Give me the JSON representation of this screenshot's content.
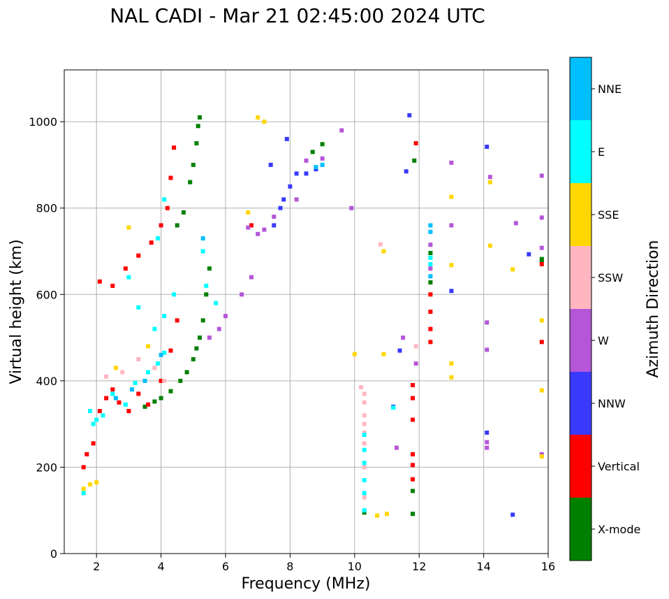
{
  "chart_data": {
    "type": "scatter",
    "title": "NAL CADI - Mar 21 02:45:00 2024 UTC",
    "xlabel": "Frequency (MHz)",
    "ylabel": "Virtual height (km)",
    "xlim": [
      1.0,
      16.0
    ],
    "ylim": [
      0,
      1120
    ],
    "xticks": [
      2,
      4,
      6,
      8,
      10,
      12,
      14,
      16
    ],
    "yticks": [
      0,
      200,
      400,
      600,
      800,
      1000
    ],
    "grid": true,
    "colorbar": {
      "label": "Azimuth Direction",
      "categories": [
        {
          "name": "X-mode",
          "color": "#008000"
        },
        {
          "name": "Vertical",
          "color": "#ff0000"
        },
        {
          "name": "NNW",
          "color": "#3a3aff"
        },
        {
          "name": "W",
          "color": "#b556d8"
        },
        {
          "name": "SSW",
          "color": "#ffb6c1"
        },
        {
          "name": "SSE",
          "color": "#ffd700"
        },
        {
          "name": "E",
          "color": "#00ffff"
        },
        {
          "name": "NNE",
          "color": "#00bfff"
        }
      ]
    },
    "series": [
      {
        "name": "X-mode",
        "points": [
          [
            3.5,
            340
          ],
          [
            3.8,
            352
          ],
          [
            4.0,
            360
          ],
          [
            4.3,
            376
          ],
          [
            4.6,
            400
          ],
          [
            4.8,
            420
          ],
          [
            5.0,
            450
          ],
          [
            5.1,
            475
          ],
          [
            5.2,
            500
          ],
          [
            5.3,
            540
          ],
          [
            5.4,
            600
          ],
          [
            5.5,
            660
          ],
          [
            4.5,
            760
          ],
          [
            4.7,
            790
          ],
          [
            4.9,
            860
          ],
          [
            5.0,
            900
          ],
          [
            5.1,
            950
          ],
          [
            5.15,
            990
          ],
          [
            5.2,
            1010
          ],
          [
            8.7,
            930
          ],
          [
            9.0,
            948
          ],
          [
            10.3,
            95
          ],
          [
            11.8,
            92
          ],
          [
            11.8,
            145
          ],
          [
            11.85,
            910
          ],
          [
            12.35,
            628
          ],
          [
            12.35,
            696
          ],
          [
            15.8,
            678
          ],
          [
            15.8,
            682
          ]
        ]
      },
      {
        "name": "Vertical",
        "points": [
          [
            1.6,
            200
          ],
          [
            1.7,
            230
          ],
          [
            1.9,
            255
          ],
          [
            2.1,
            330
          ],
          [
            2.3,
            360
          ],
          [
            2.5,
            380
          ],
          [
            2.7,
            350
          ],
          [
            3.0,
            330
          ],
          [
            3.3,
            370
          ],
          [
            3.6,
            345
          ],
          [
            4.0,
            400
          ],
          [
            4.3,
            470
          ],
          [
            4.5,
            540
          ],
          [
            2.1,
            630
          ],
          [
            2.5,
            620
          ],
          [
            2.9,
            660
          ],
          [
            3.3,
            690
          ],
          [
            3.7,
            720
          ],
          [
            4.0,
            760
          ],
          [
            4.2,
            800
          ],
          [
            4.3,
            870
          ],
          [
            4.4,
            940
          ],
          [
            6.8,
            760
          ],
          [
            11.8,
            390
          ],
          [
            11.8,
            360
          ],
          [
            11.8,
            310
          ],
          [
            11.8,
            230
          ],
          [
            11.8,
            205
          ],
          [
            11.8,
            172
          ],
          [
            11.9,
            950
          ],
          [
            12.35,
            490
          ],
          [
            12.35,
            520
          ],
          [
            12.35,
            560
          ],
          [
            12.35,
            600
          ],
          [
            15.8,
            490
          ],
          [
            15.8,
            670
          ]
        ]
      },
      {
        "name": "NNW",
        "points": [
          [
            7.5,
            760
          ],
          [
            7.8,
            820
          ],
          [
            8.0,
            850
          ],
          [
            8.2,
            880
          ],
          [
            8.5,
            880
          ],
          [
            8.8,
            890
          ],
          [
            7.7,
            800
          ],
          [
            7.9,
            960
          ],
          [
            7.4,
            900
          ],
          [
            11.4,
            470
          ],
          [
            11.2,
            340
          ],
          [
            11.6,
            885
          ],
          [
            11.7,
            1015
          ],
          [
            13.0,
            608
          ],
          [
            14.1,
            280
          ],
          [
            14.1,
            942
          ],
          [
            15.4,
            693
          ],
          [
            14.9,
            90
          ]
        ]
      },
      {
        "name": "W",
        "points": [
          [
            5.5,
            500
          ],
          [
            5.8,
            520
          ],
          [
            6.0,
            550
          ],
          [
            6.5,
            600
          ],
          [
            6.8,
            640
          ],
          [
            7.0,
            740
          ],
          [
            7.5,
            780
          ],
          [
            7.2,
            750
          ],
          [
            6.7,
            755
          ],
          [
            8.2,
            820
          ],
          [
            8.5,
            910
          ],
          [
            9.0,
            915
          ],
          [
            9.6,
            980
          ],
          [
            9.9,
            800
          ],
          [
            11.3,
            245
          ],
          [
            11.9,
            440
          ],
          [
            11.5,
            500
          ],
          [
            12.35,
            660
          ],
          [
            12.35,
            715
          ],
          [
            13.0,
            760
          ],
          [
            13.0,
            905
          ],
          [
            14.1,
            245
          ],
          [
            14.1,
            258
          ],
          [
            14.1,
            472
          ],
          [
            14.1,
            535
          ],
          [
            14.2,
            872
          ],
          [
            15.0,
            765
          ],
          [
            15.8,
            230
          ],
          [
            15.8,
            708
          ],
          [
            15.8,
            778
          ],
          [
            15.8,
            875
          ]
        ]
      },
      {
        "name": "SSW",
        "points": [
          [
            2.3,
            410
          ],
          [
            2.8,
            420
          ],
          [
            3.3,
            450
          ],
          [
            4.1,
            400
          ],
          [
            3.8,
            430
          ],
          [
            10.2,
            385
          ],
          [
            10.3,
            370
          ],
          [
            10.3,
            350
          ],
          [
            10.3,
            320
          ],
          [
            10.3,
            300
          ],
          [
            10.3,
            280
          ],
          [
            10.3,
            255
          ],
          [
            10.3,
            200
          ],
          [
            10.3,
            130
          ],
          [
            10.8,
            716
          ],
          [
            11.9,
            480
          ]
        ]
      },
      {
        "name": "SSE",
        "points": [
          [
            1.6,
            150
          ],
          [
            1.8,
            160
          ],
          [
            2.0,
            165
          ],
          [
            3.0,
            755
          ],
          [
            2.6,
            430
          ],
          [
            3.6,
            480
          ],
          [
            7.0,
            1010
          ],
          [
            7.2,
            1000
          ],
          [
            6.7,
            790
          ],
          [
            10.0,
            462
          ],
          [
            10.7,
            88
          ],
          [
            10.9,
            700
          ],
          [
            10.9,
            462
          ],
          [
            11.0,
            92
          ],
          [
            13.0,
            408
          ],
          [
            13.0,
            440
          ],
          [
            13.0,
            668
          ],
          [
            13.0,
            826
          ],
          [
            14.2,
            713
          ],
          [
            14.2,
            860
          ],
          [
            14.9,
            658
          ],
          [
            15.8,
            225
          ],
          [
            15.8,
            378
          ],
          [
            15.8,
            540
          ]
        ]
      },
      {
        "name": "E",
        "points": [
          [
            1.6,
            140
          ],
          [
            1.8,
            330
          ],
          [
            2.0,
            310
          ],
          [
            2.2,
            320
          ],
          [
            2.5,
            370
          ],
          [
            2.9,
            345
          ],
          [
            3.2,
            395
          ],
          [
            3.6,
            420
          ],
          [
            3.9,
            440
          ],
          [
            4.1,
            465
          ],
          [
            3.8,
            520
          ],
          [
            4.1,
            550
          ],
          [
            4.4,
            600
          ],
          [
            3.3,
            570
          ],
          [
            3.0,
            640
          ],
          [
            3.9,
            730
          ],
          [
            4.1,
            820
          ],
          [
            5.3,
            700
          ],
          [
            5.4,
            620
          ],
          [
            5.7,
            580
          ],
          [
            1.9,
            300
          ],
          [
            10.3,
            100
          ],
          [
            10.3,
            140
          ],
          [
            10.3,
            170
          ],
          [
            10.3,
            210
          ],
          [
            10.3,
            240
          ],
          [
            10.3,
            275
          ],
          [
            11.2,
            338
          ],
          [
            12.35,
            670
          ],
          [
            12.35,
            685
          ]
        ]
      },
      {
        "name": "NNE",
        "points": [
          [
            2.6,
            360
          ],
          [
            3.1,
            380
          ],
          [
            3.5,
            400
          ],
          [
            8.8,
            895
          ],
          [
            9.0,
            900
          ],
          [
            4.0,
            460
          ],
          [
            5.3,
            730
          ],
          [
            12.35,
            745
          ],
          [
            12.35,
            760
          ],
          [
            12.35,
            642
          ]
        ]
      }
    ]
  }
}
